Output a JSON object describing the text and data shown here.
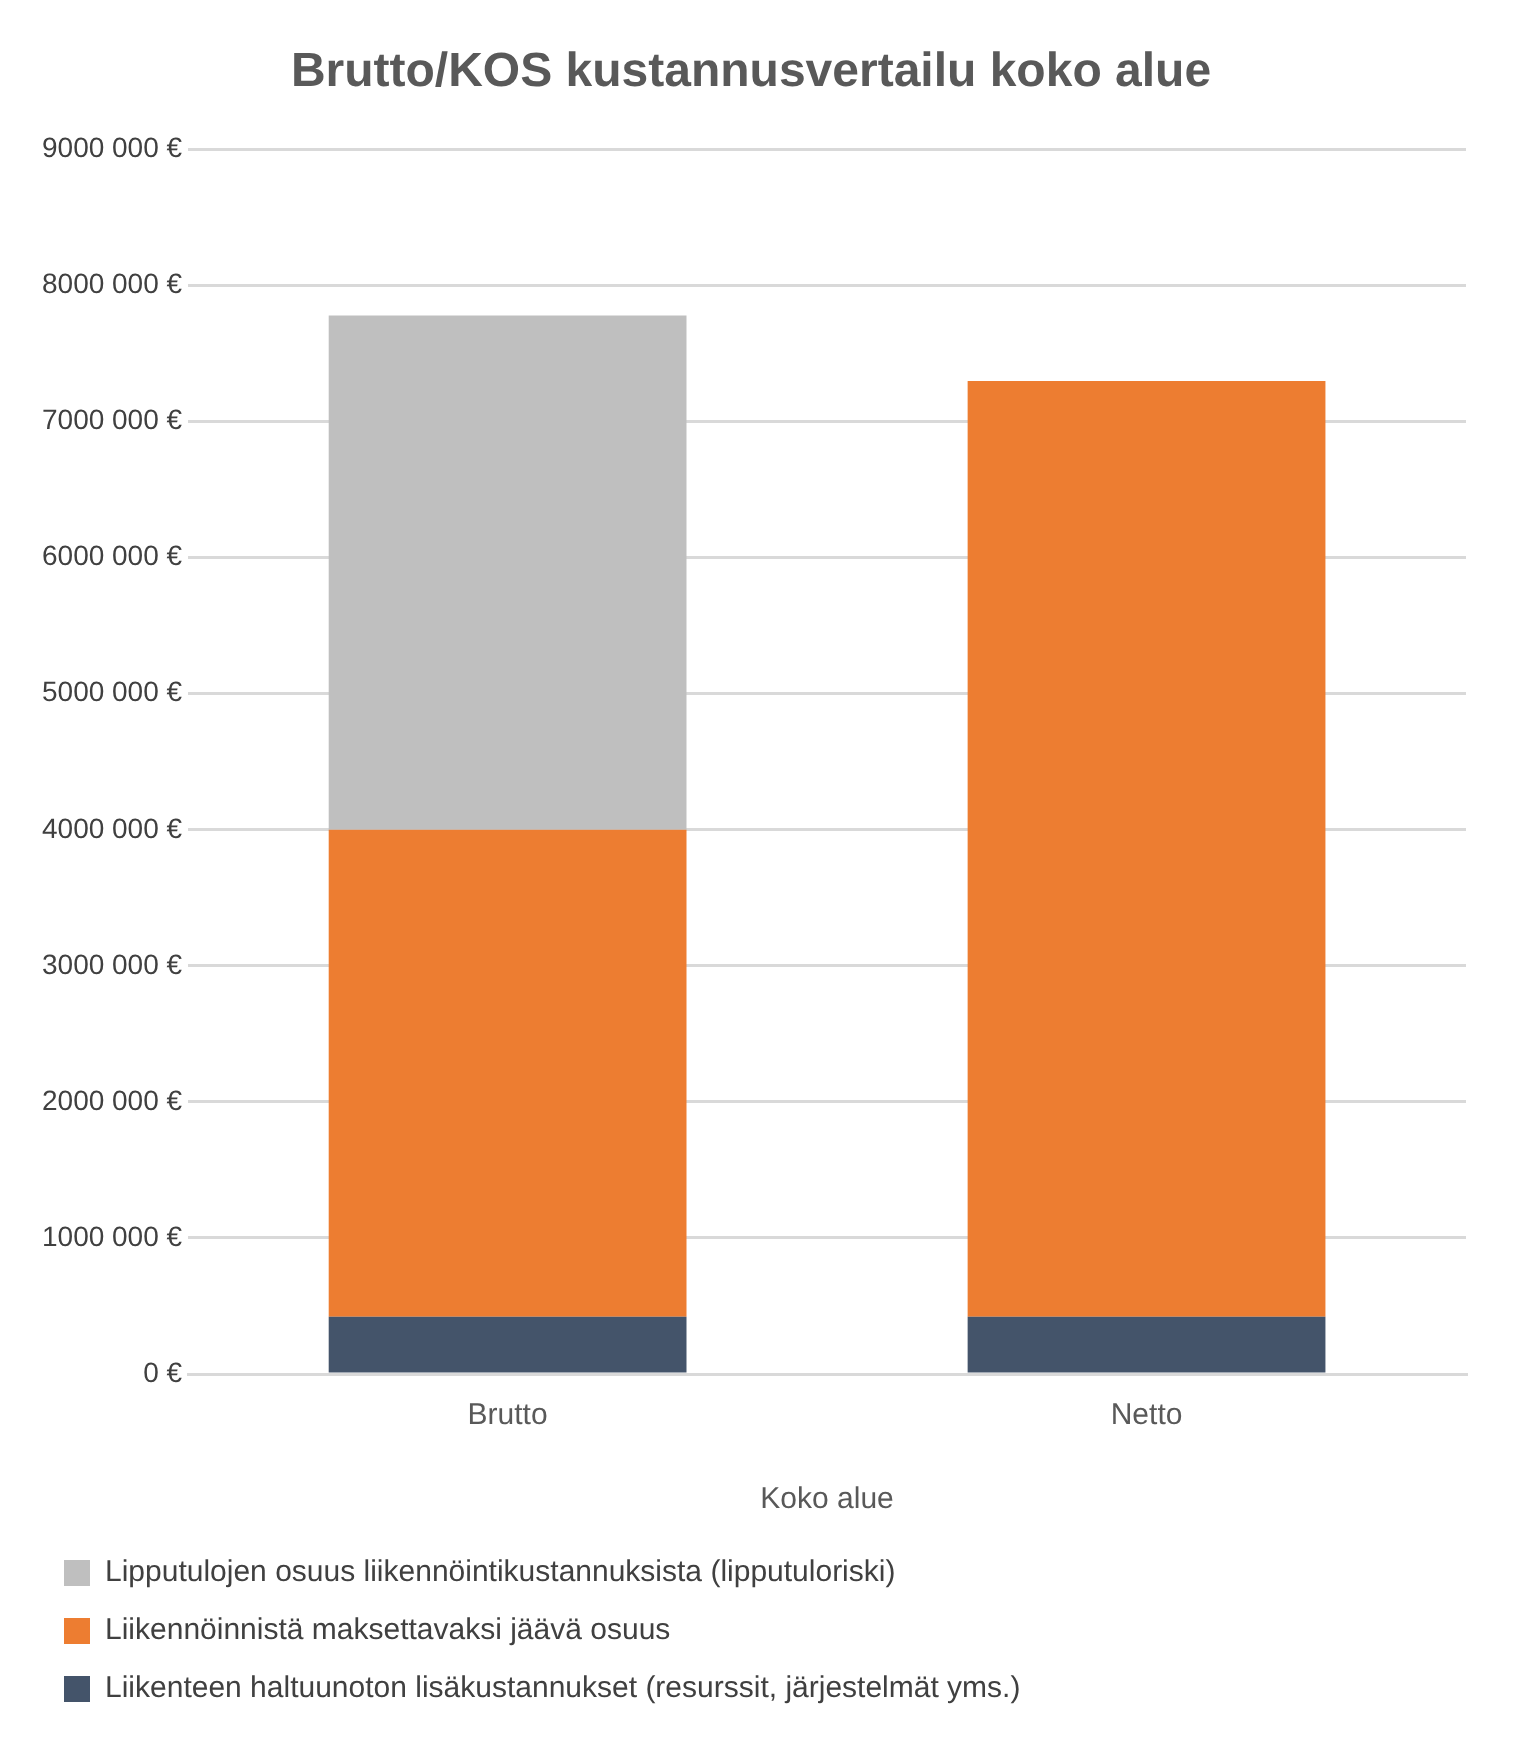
{
  "chart_data": {
    "type": "bar",
    "title": "Brutto/KOS kustannusvertailu koko alue",
    "xlabel": "Koko alue",
    "categories": [
      "Brutto",
      "Netto"
    ],
    "stacked": true,
    "series": [
      {
        "name": "Liikenteen haltuunoton lisäkustannukset (resurssit, järjestelmät yms.)",
        "color": "#44546a",
        "values": [
          420000,
          420000
        ]
      },
      {
        "name": "Liikennöinnistä maksettavaksi jäävä osuus",
        "color": "#ed7d31",
        "values": [
          3580000,
          6880000
        ]
      },
      {
        "name": "Lipputulojen osuus liikennöintikustannuksista (lipputuloriski)",
        "color": "#bfbfbf",
        "values": [
          3780000,
          null
        ]
      }
    ],
    "ylim": [
      0,
      9000000
    ],
    "yticks": [
      {
        "value": 0,
        "label": "0 €"
      },
      {
        "value": 1000000,
        "label": "1000 000 €"
      },
      {
        "value": 2000000,
        "label": "2000 000 €"
      },
      {
        "value": 3000000,
        "label": "3000 000 €"
      },
      {
        "value": 4000000,
        "label": "4000 000 €"
      },
      {
        "value": 5000000,
        "label": "5000 000 €"
      },
      {
        "value": 6000000,
        "label": "6000 000 €"
      },
      {
        "value": 7000000,
        "label": "7000 000 €"
      },
      {
        "value": 8000000,
        "label": "8000 000 €"
      },
      {
        "value": 9000000,
        "label": "9000 000 €"
      }
    ],
    "grid": "y",
    "legend": "bottom"
  }
}
